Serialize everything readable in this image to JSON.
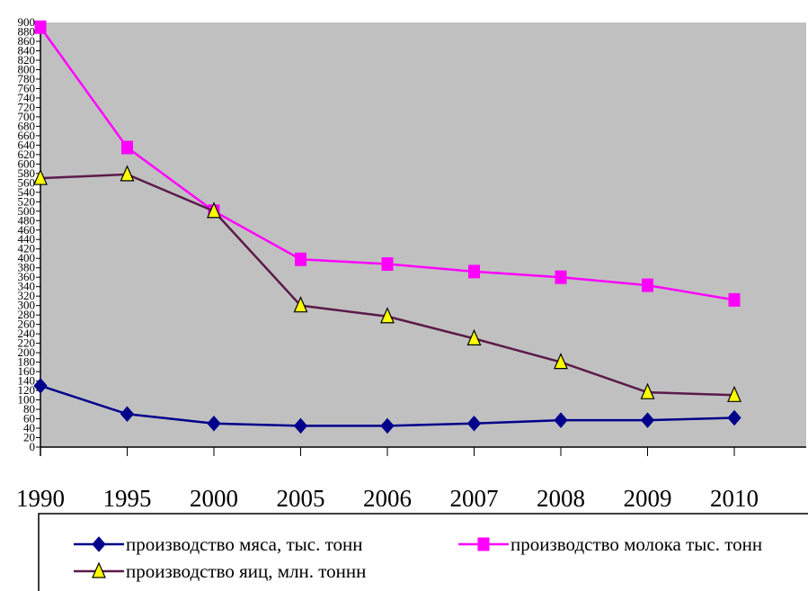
{
  "chart_data": {
    "type": "line",
    "title": "",
    "xlabel": "",
    "ylabel": "",
    "categories": [
      "1990",
      "1995",
      "2000",
      "2005",
      "2006",
      "2007",
      "2008",
      "2009",
      "2010"
    ],
    "ylim": [
      0,
      900
    ],
    "y_tick_step": 20,
    "grid": false,
    "plot_background": "#c0c0c0",
    "legend_position": "bottom",
    "series": [
      {
        "name": "производство мяса, тыс. тонн",
        "color": "#00008b",
        "marker": "diamond",
        "values": [
          130,
          70,
          50,
          45,
          45,
          50,
          57,
          57,
          62
        ]
      },
      {
        "name": "производство молока тыс. тонн",
        "color": "#ff00ff",
        "marker": "square",
        "values": [
          890,
          635,
          500,
          398,
          388,
          372,
          360,
          343,
          312
        ]
      },
      {
        "name": "производство яиц, млн. тоннн",
        "color": "#5a1a4a",
        "marker": "triangle",
        "values": [
          570,
          578,
          500,
          300,
          277,
          230,
          180,
          116,
          110
        ]
      }
    ]
  }
}
